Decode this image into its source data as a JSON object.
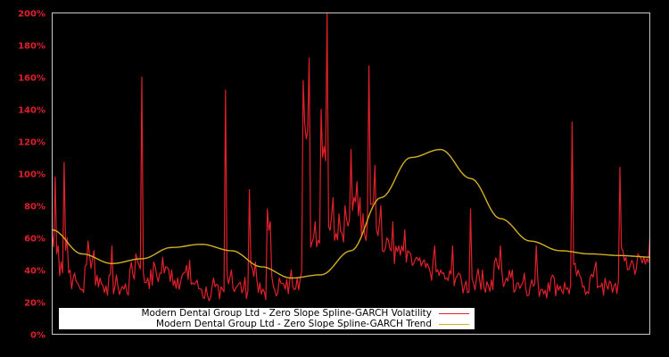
{
  "chart_data": {
    "type": "line",
    "title": "",
    "xlabel": "",
    "ylabel": "",
    "ylim": [
      0,
      200
    ],
    "yticks": [
      "0%",
      "20%",
      "40%",
      "60%",
      "80%",
      "100%",
      "120%",
      "140%",
      "160%",
      "180%",
      "200%"
    ],
    "grid": false,
    "legend_position": "lower-left inside",
    "background": "#000000",
    "axis_color": "#c8c8c8",
    "tick_label_color": "#e0202a",
    "series": [
      {
        "name": "Modern Dental Group Ltd - Zero Slope Spline-GARCH Volatility",
        "color": "#e0202a",
        "x_fraction": [
          0.0,
          0.005,
          0.01,
          0.015,
          0.02,
          0.025,
          0.03,
          0.035,
          0.04,
          0.045,
          0.05,
          0.055,
          0.06,
          0.07,
          0.08,
          0.09,
          0.1,
          0.11,
          0.12,
          0.13,
          0.14,
          0.15,
          0.16,
          0.17,
          0.18,
          0.185,
          0.19,
          0.2,
          0.21,
          0.22,
          0.23,
          0.24,
          0.25,
          0.26,
          0.27,
          0.28,
          0.29,
          0.3,
          0.31,
          0.32,
          0.33,
          0.34,
          0.35,
          0.36,
          0.365,
          0.37,
          0.38,
          0.39,
          0.4,
          0.41,
          0.42,
          0.43,
          0.44,
          0.45,
          0.46,
          0.47,
          0.48,
          0.49,
          0.5,
          0.51,
          0.515,
          0.52,
          0.53,
          0.54,
          0.55,
          0.56,
          0.57,
          0.58,
          0.59,
          0.6,
          0.61,
          0.62,
          0.63,
          0.64,
          0.65,
          0.66,
          0.67,
          0.68,
          0.69,
          0.7,
          0.71,
          0.72,
          0.73,
          0.74,
          0.75,
          0.76,
          0.77,
          0.78,
          0.79,
          0.8,
          0.81,
          0.82,
          0.83,
          0.84,
          0.85,
          0.86,
          0.87,
          0.88,
          0.89,
          0.9,
          0.91,
          0.92,
          0.93,
          0.94,
          0.95,
          0.955,
          0.96,
          0.97,
          0.98,
          0.99,
          0.995,
          1.0
        ],
        "values": [
          62,
          98,
          55,
          45,
          107,
          60,
          40,
          35,
          33,
          30,
          28,
          42,
          58,
          52,
          35,
          30,
          55,
          30,
          28,
          40,
          50,
          160,
          35,
          45,
          38,
          48,
          42,
          40,
          35,
          38,
          46,
          32,
          28,
          24,
          35,
          22,
          152,
          40,
          30,
          28,
          90,
          45,
          25,
          78,
          70,
          30,
          35,
          28,
          40,
          35,
          158,
          172,
          70,
          140,
          200,
          85,
          75,
          80,
          115,
          95,
          85,
          75,
          167,
          105,
          80,
          60,
          70,
          55,
          65,
          50,
          48,
          45,
          42,
          55,
          40,
          35,
          55,
          38,
          30,
          78,
          35,
          40,
          30,
          45,
          55,
          35,
          40,
          32,
          38,
          30,
          55,
          28,
          32,
          35,
          30,
          28,
          132,
          40,
          30,
          35,
          45,
          32,
          28,
          30,
          104,
          52,
          48,
          46,
          50,
          48,
          47,
          60
        ],
        "note": "approximate envelope of noisy daily series; peaks near 200% at ~54% of range"
      },
      {
        "name": "Modern Dental Group Ltd - Zero Slope Spline-GARCH Trend",
        "color": "#d4b020",
        "x_fraction": [
          0.0,
          0.05,
          0.1,
          0.15,
          0.2,
          0.25,
          0.3,
          0.35,
          0.4,
          0.45,
          0.5,
          0.55,
          0.6,
          0.65,
          0.7,
          0.75,
          0.8,
          0.85,
          0.9,
          0.95,
          1.0
        ],
        "values": [
          65,
          50,
          44,
          47,
          54,
          56,
          52,
          42,
          35,
          37,
          52,
          85,
          110,
          115,
          97,
          72,
          58,
          52,
          50,
          49,
          48
        ]
      }
    ]
  },
  "legend": {
    "items": [
      {
        "label": "Modern Dental Group Ltd - Zero Slope Spline-GARCH Volatility",
        "color": "#e0202a"
      },
      {
        "label": "Modern Dental Group Ltd - Zero Slope Spline-GARCH Trend",
        "color": "#d4b020"
      }
    ]
  }
}
